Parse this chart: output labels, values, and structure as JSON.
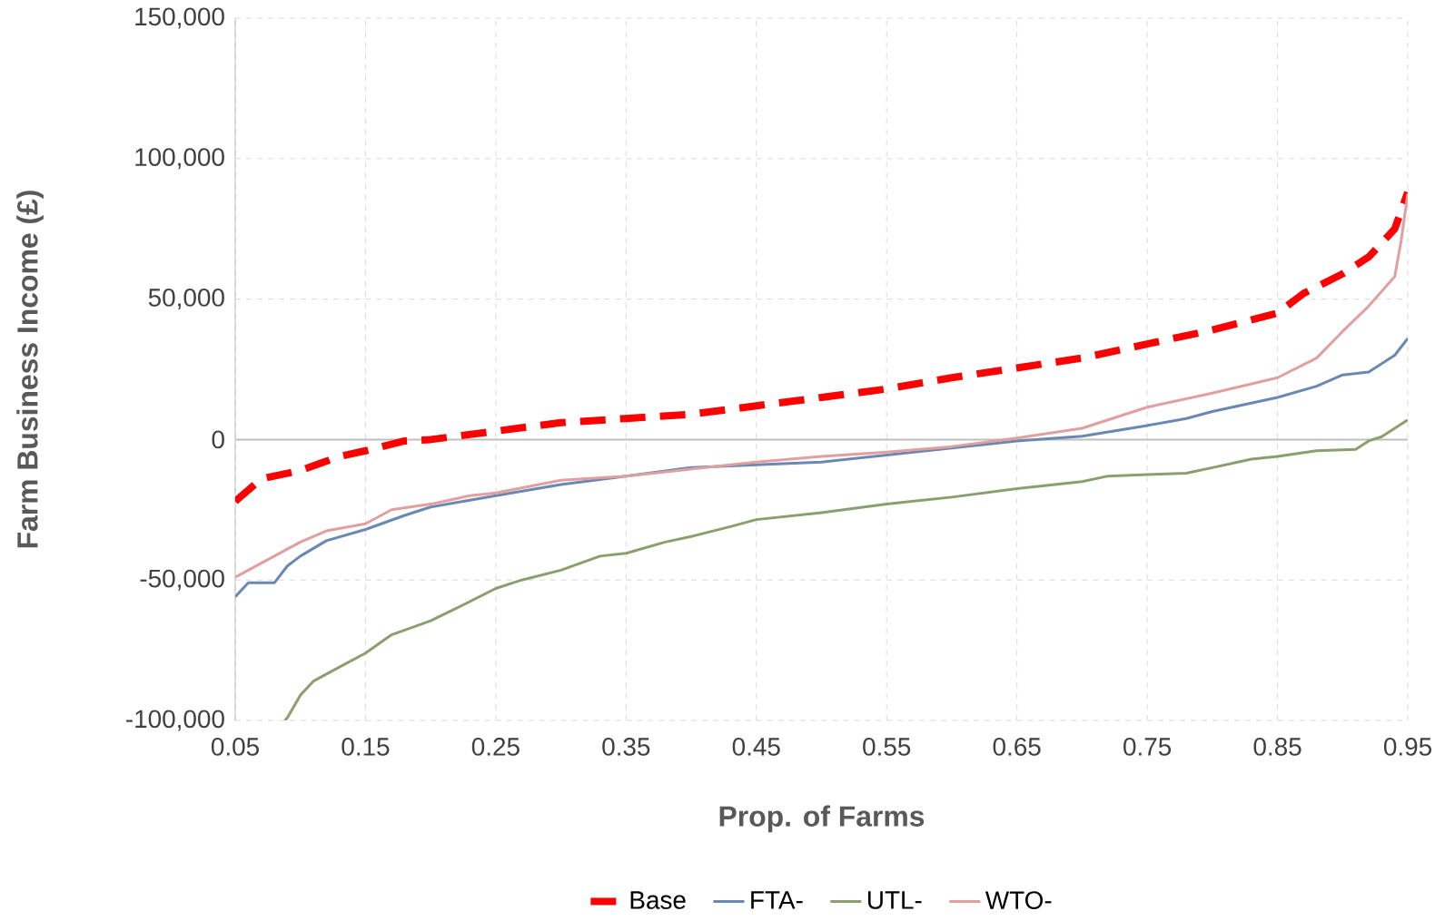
{
  "chart_data": {
    "type": "line",
    "xlabel": "Prop. of Farms",
    "ylabel": "Farm Business Income (£)",
    "xlim": [
      0.05,
      0.95
    ],
    "ylim": [
      -100000,
      150000
    ],
    "xticks": [
      0.05,
      0.15,
      0.25,
      0.35,
      0.45,
      0.55,
      0.65,
      0.75,
      0.85,
      0.95
    ],
    "yticks": [
      {
        "value": -100000,
        "label": "-100,000"
      },
      {
        "value": -50000,
        "label": "-50,000"
      },
      0,
      {
        "value": 50000,
        "label": "50,000"
      },
      {
        "value": 100000,
        "label": "100,000"
      },
      {
        "value": 150000,
        "label": "150,000"
      }
    ],
    "grid": true,
    "legend": "bottom",
    "ref_lines": [
      {
        "axis": "y",
        "value": 0,
        "color": "#bfbfbf"
      }
    ],
    "series": [
      {
        "name": "Base",
        "color": "#ff0000",
        "line_style": "dashed",
        "x": [
          0.05,
          0.07,
          0.1,
          0.13,
          0.15,
          0.18,
          0.2,
          0.25,
          0.3,
          0.35,
          0.4,
          0.45,
          0.5,
          0.55,
          0.6,
          0.65,
          0.7,
          0.75,
          0.8,
          0.85,
          0.87,
          0.9,
          0.92,
          0.94,
          0.95
        ],
        "values": [
          -22000,
          -14000,
          -11000,
          -6000,
          -4000,
          -500,
          0,
          3000,
          6000,
          7500,
          9000,
          12000,
          15000,
          18000,
          22000,
          25500,
          29000,
          34000,
          39000,
          45000,
          52000,
          59000,
          65000,
          75000,
          88000
        ]
      },
      {
        "name": "FTA-",
        "color": "#6a88b4",
        "line_style": "solid",
        "x": [
          0.05,
          0.06,
          0.08,
          0.09,
          0.1,
          0.12,
          0.15,
          0.18,
          0.2,
          0.25,
          0.3,
          0.35,
          0.4,
          0.45,
          0.5,
          0.55,
          0.6,
          0.65,
          0.7,
          0.75,
          0.78,
          0.8,
          0.85,
          0.88,
          0.9,
          0.92,
          0.94,
          0.95
        ],
        "values": [
          -56000,
          -51000,
          -51000,
          -45000,
          -41500,
          -36000,
          -32000,
          -27000,
          -24000,
          -20000,
          -16000,
          -13000,
          -10000,
          -9000,
          -8000,
          -5500,
          -3000,
          -500,
          1200,
          5000,
          7500,
          10000,
          15000,
          19000,
          23000,
          24000,
          30000,
          36000
        ]
      },
      {
        "name": "UTL-",
        "color": "#8a9f6e",
        "line_style": "solid",
        "x": [
          0.088,
          0.09,
          0.1,
          0.11,
          0.13,
          0.15,
          0.17,
          0.2,
          0.22,
          0.25,
          0.27,
          0.3,
          0.33,
          0.35,
          0.38,
          0.4,
          0.43,
          0.45,
          0.5,
          0.55,
          0.6,
          0.65,
          0.7,
          0.72,
          0.75,
          0.78,
          0.8,
          0.83,
          0.85,
          0.88,
          0.91,
          0.92,
          0.93,
          0.95
        ],
        "values": [
          -100000,
          -99000,
          -91000,
          -86000,
          -81000,
          -76000,
          -69500,
          -64500,
          -60000,
          -53000,
          -50000,
          -46500,
          -41500,
          -40500,
          -36500,
          -34500,
          -31000,
          -28500,
          -26000,
          -23000,
          -20500,
          -17500,
          -15000,
          -13000,
          -12500,
          -12000,
          -10000,
          -7000,
          -6000,
          -4000,
          -3500,
          -500,
          1000,
          7000
        ]
      },
      {
        "name": "WTO-",
        "color": "#e0a0a0",
        "line_style": "solid",
        "x": [
          0.05,
          0.06,
          0.08,
          0.1,
          0.12,
          0.15,
          0.17,
          0.2,
          0.23,
          0.25,
          0.3,
          0.35,
          0.4,
          0.45,
          0.5,
          0.55,
          0.6,
          0.65,
          0.7,
          0.75,
          0.8,
          0.85,
          0.88,
          0.9,
          0.92,
          0.94,
          0.945,
          0.95
        ],
        "values": [
          -49000,
          -46500,
          -41500,
          -36500,
          -32500,
          -30000,
          -25000,
          -23000,
          -20000,
          -19000,
          -14500,
          -13000,
          -10500,
          -8000,
          -6000,
          -4500,
          -2500,
          500,
          4000,
          11500,
          16500,
          22000,
          29000,
          38500,
          47500,
          58000,
          71000,
          87500
        ]
      }
    ]
  }
}
